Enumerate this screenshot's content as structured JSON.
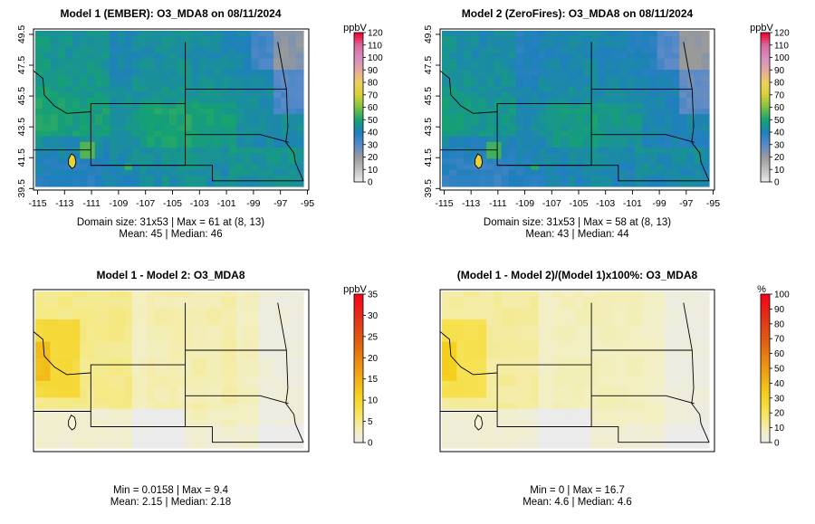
{
  "chart_data": [
    {
      "type": "heatmap",
      "title": "Model 1 (EMBER): O3_MDA8 on 08/11/2024",
      "legend_title": "ppbV",
      "legend_ticks": [
        "0",
        "10",
        "20",
        "30",
        "40",
        "50",
        "60",
        "70",
        "80",
        "90",
        "100",
        "110",
        "120"
      ],
      "legend_range": [
        0,
        120
      ],
      "x_ticks": [
        "-115",
        "-113",
        "-111",
        "-109",
        "-107",
        "-105",
        "-103",
        "-101",
        "-99",
        "-97",
        "-95"
      ],
      "y_ticks": [
        "39.5",
        "41.5",
        "43.5",
        "45.5",
        "47.5",
        "49.5"
      ],
      "xlim": [
        -115.3,
        -94.9
      ],
      "ylim": [
        39.4,
        49.85
      ],
      "stats_line1": "Domain size: 31x53 | Max = 61 at (8, 13)",
      "stats_line2": "Mean: 45 |  Median: 46",
      "max_value": 61,
      "mean": 45,
      "median": 46,
      "show_axes": true
    },
    {
      "type": "heatmap",
      "title": "Model 2 (ZeroFires): O3_MDA8 on 08/11/2024",
      "legend_title": "ppbV",
      "legend_ticks": [
        "0",
        "10",
        "20",
        "30",
        "40",
        "50",
        "60",
        "70",
        "80",
        "90",
        "100",
        "110",
        "120"
      ],
      "legend_range": [
        0,
        120
      ],
      "x_ticks": [
        "-115",
        "-113",
        "-111",
        "-109",
        "-107",
        "-105",
        "-103",
        "-101",
        "-99",
        "-97",
        "-95"
      ],
      "y_ticks": [
        "39.5",
        "41.5",
        "43.5",
        "45.5",
        "47.5",
        "49.5"
      ],
      "xlim": [
        -115.3,
        -94.9
      ],
      "ylim": [
        39.4,
        49.85
      ],
      "stats_line1": "Domain size: 31x53 | Max = 58 at (8, 13)",
      "stats_line2": "Mean: 43 |  Median: 44",
      "max_value": 58,
      "mean": 43,
      "median": 44,
      "show_axes": true
    },
    {
      "type": "heatmap",
      "title": "Model 1 - Model 2: O3_MDA8",
      "legend_title": "ppbV",
      "legend_ticks": [
        "0",
        "5",
        "10",
        "15",
        "20",
        "25",
        "30",
        "35"
      ],
      "legend_range": [
        0,
        35
      ],
      "stats_line1": "Min = 0.0158 | Max = 9.4",
      "stats_line2": "Mean: 2.15 |  Median: 2.18",
      "min_value": 0.0158,
      "max_value": 9.4,
      "mean": 2.15,
      "median": 2.18,
      "show_axes": false
    },
    {
      "type": "heatmap",
      "title": "(Model 1 - Model 2)/(Model 1)x100%: O3_MDA8",
      "legend_title": "%",
      "legend_ticks": [
        "0",
        "10",
        "20",
        "30",
        "40",
        "50",
        "60",
        "70",
        "80",
        "90",
        "100"
      ],
      "legend_range": [
        0,
        100
      ],
      "stats_line1": "Min = 0 | Max = 16.7",
      "stats_line2": "Mean: 4.6 |  Median: 4.6",
      "min_value": 0,
      "max_value": 16.7,
      "mean": 4.6,
      "median": 4.6,
      "show_axes": false
    }
  ]
}
